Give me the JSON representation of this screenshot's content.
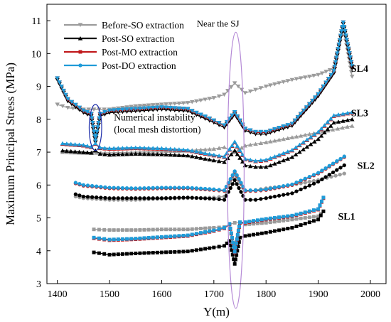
{
  "chart_data": {
    "type": "line",
    "xlabel": "Y(m)",
    "ylabel": "Maximum Principal Stress (MPa)",
    "xlim": [
      1380,
      2030
    ],
    "ylim": [
      3,
      11.5
    ],
    "xticks": [
      1400,
      1500,
      1600,
      1700,
      1800,
      1900,
      2000
    ],
    "yticks": [
      3,
      4,
      5,
      6,
      7,
      8,
      9,
      10,
      11
    ],
    "grid": false,
    "legend_placement": "top-left",
    "legend": [
      {
        "name": "Before-SO extraction",
        "color": "#9b9b9b",
        "marker": "triangle-down"
      },
      {
        "name": "Post-SO extraction",
        "color": "#000000",
        "marker": "triangle-up"
      },
      {
        "name": "Post-MO extraction",
        "color": "#c0191c",
        "marker": "square"
      },
      {
        "name": "Post-DO extraction",
        "color": "#1f9bd8",
        "marker": "circle"
      }
    ],
    "annotations": [
      {
        "id": "near-sj",
        "text": "Near the SJ",
        "ellipse": {
          "cx": 1742,
          "cy": 6.45,
          "rx": 16,
          "ry": 4.2
        },
        "color": "#b58ad6"
      },
      {
        "id": "numerical-instability",
        "lines": [
          "Numerical instability",
          "(local mesh distortion)"
        ],
        "ellipse": {
          "cx": 1473,
          "cy": 7.75,
          "rx": 12,
          "ry": 0.7
        },
        "color": "#1a2aa8"
      }
    ],
    "groups": [
      {
        "label": "SL4",
        "marker": "triangle-down",
        "label_at": [
          1963,
          9.55
        ],
        "series": [
          {
            "name": "Before-SO extraction",
            "color": "#9b9b9b",
            "x": [
              1400,
              1420,
              1450,
              1480,
              1500,
              1550,
              1600,
              1650,
              1700,
              1720,
              1740,
              1760,
              1780,
              1800,
              1850,
              1900,
              1930,
              1948,
              1965
            ],
            "y": [
              8.45,
              8.35,
              8.3,
              8.3,
              8.3,
              8.4,
              8.45,
              8.5,
              8.65,
              8.75,
              9.1,
              8.8,
              8.9,
              9.0,
              9.2,
              9.35,
              9.55,
              10.8,
              9.3
            ]
          },
          {
            "name": "Post-SO extraction",
            "color": "#000000",
            "x": [
              1400,
              1420,
              1450,
              1465,
              1473,
              1482,
              1500,
              1550,
              1600,
              1650,
              1700,
              1720,
              1740,
              1760,
              1780,
              1800,
              1850,
              1900,
              1930,
              1948,
              1965
            ],
            "y": [
              9.2,
              8.55,
              8.2,
              8.1,
              7.3,
              8.1,
              8.2,
              8.25,
              8.3,
              8.25,
              7.9,
              7.75,
              8.15,
              7.65,
              7.55,
              7.55,
              7.8,
              8.7,
              9.4,
              10.9,
              9.55
            ]
          },
          {
            "name": "Post-MO extraction",
            "color": "#c0191c",
            "x": [
              1400,
              1420,
              1450,
              1465,
              1473,
              1482,
              1500,
              1550,
              1600,
              1650,
              1700,
              1720,
              1740,
              1760,
              1780,
              1800,
              1850,
              1900,
              1930,
              1948,
              1965
            ],
            "y": [
              9.25,
              8.6,
              8.25,
              8.15,
              7.35,
              8.15,
              8.25,
              8.3,
              8.35,
              8.3,
              7.95,
              7.8,
              8.2,
              7.7,
              7.6,
              7.6,
              7.85,
              8.75,
              9.45,
              10.95,
              9.6
            ]
          },
          {
            "name": "Post-DO extraction",
            "color": "#1f9bd8",
            "x": [
              1400,
              1420,
              1450,
              1465,
              1473,
              1482,
              1500,
              1550,
              1600,
              1650,
              1700,
              1720,
              1740,
              1760,
              1780,
              1800,
              1850,
              1900,
              1930,
              1948,
              1965
            ],
            "y": [
              9.25,
              8.62,
              8.27,
              8.17,
              7.35,
              8.17,
              8.27,
              8.32,
              8.37,
              8.32,
              7.97,
              7.82,
              8.22,
              7.72,
              7.62,
              7.62,
              7.87,
              8.77,
              9.47,
              10.95,
              9.62
            ]
          }
        ]
      },
      {
        "label": "SL3",
        "marker": "triangle-up",
        "label_at": [
          1963,
          8.2
        ],
        "series": [
          {
            "name": "Before-SO extraction",
            "color": "#9b9b9b",
            "x": [
              1410,
              1450,
              1500,
              1550,
              1600,
              1650,
              1700,
              1720,
              1740,
              1760,
              1780,
              1800,
              1850,
              1900,
              1965
            ],
            "y": [
              7.0,
              6.98,
              6.98,
              7.0,
              7.02,
              7.05,
              7.1,
              7.15,
              7.0,
              7.2,
              7.25,
              7.3,
              7.45,
              7.6,
              7.8
            ]
          },
          {
            "name": "Post-SO extraction",
            "color": "#000000",
            "x": [
              1410,
              1450,
              1465,
              1473,
              1482,
              1500,
              1550,
              1600,
              1650,
              1700,
              1720,
              1740,
              1760,
              1780,
              1800,
              1850,
              1900,
              1930,
              1965
            ],
            "y": [
              7.05,
              7.0,
              6.98,
              7.05,
              6.95,
              6.92,
              6.95,
              6.93,
              6.9,
              6.75,
              6.7,
              7.05,
              6.6,
              6.55,
              6.55,
              6.85,
              7.4,
              7.9,
              8.0
            ]
          },
          {
            "name": "Post-MO extraction",
            "color": "#c0191c",
            "x": [
              1410,
              1450,
              1465,
              1473,
              1482,
              1500,
              1550,
              1600,
              1650,
              1700,
              1720,
              1740,
              1760,
              1780,
              1800,
              1850,
              1900,
              1930,
              1965
            ],
            "y": [
              7.25,
              7.2,
              7.15,
              7.25,
              7.12,
              7.1,
              7.12,
              7.1,
              7.05,
              6.9,
              6.85,
              7.3,
              6.78,
              6.72,
              6.75,
              7.05,
              7.6,
              8.1,
              8.2
            ]
          },
          {
            "name": "Post-DO extraction",
            "color": "#1f9bd8",
            "x": [
              1410,
              1450,
              1465,
              1473,
              1482,
              1500,
              1550,
              1600,
              1650,
              1700,
              1720,
              1740,
              1760,
              1780,
              1800,
              1850,
              1900,
              1930,
              1965
            ],
            "y": [
              7.27,
              7.22,
              7.17,
              7.27,
              7.14,
              7.12,
              7.14,
              7.12,
              7.07,
              6.92,
              6.87,
              7.32,
              6.8,
              6.74,
              6.77,
              7.07,
              7.62,
              8.12,
              8.22
            ]
          }
        ]
      },
      {
        "label": "SL2",
        "marker": "circle",
        "label_at": [
          1975,
          6.6
        ],
        "series": [
          {
            "name": "Before-SO extraction",
            "color": "#9b9b9b",
            "x": [
              1435,
              1450,
              1500,
              1550,
              1600,
              1650,
              1700,
              1720,
              1740,
              1760,
              1780,
              1800,
              1850,
              1900,
              1950
            ],
            "y": [
              5.65,
              5.6,
              5.55,
              5.55,
              5.58,
              5.6,
              5.62,
              5.65,
              6.35,
              5.8,
              5.85,
              5.9,
              6.0,
              6.15,
              6.35
            ]
          },
          {
            "name": "Post-SO extraction",
            "color": "#000000",
            "x": [
              1435,
              1450,
              1500,
              1550,
              1600,
              1650,
              1700,
              1720,
              1740,
              1760,
              1780,
              1800,
              1850,
              1900,
              1950
            ],
            "y": [
              5.72,
              5.65,
              5.6,
              5.6,
              5.6,
              5.62,
              5.58,
              5.55,
              6.15,
              5.55,
              5.55,
              5.6,
              5.75,
              6.1,
              6.6
            ]
          },
          {
            "name": "Post-MO extraction",
            "color": "#c0191c",
            "x": [
              1435,
              1450,
              1500,
              1550,
              1600,
              1650,
              1700,
              1720,
              1740,
              1760,
              1780,
              1800,
              1850,
              1900,
              1950
            ],
            "y": [
              6.05,
              5.98,
              5.9,
              5.88,
              5.9,
              5.9,
              5.85,
              5.82,
              6.4,
              5.82,
              5.82,
              5.85,
              6.0,
              6.35,
              6.85
            ]
          },
          {
            "name": "Post-DO extraction",
            "color": "#1f9bd8",
            "x": [
              1435,
              1450,
              1500,
              1550,
              1600,
              1650,
              1700,
              1720,
              1740,
              1760,
              1780,
              1800,
              1850,
              1900,
              1950
            ],
            "y": [
              6.07,
              6.0,
              5.92,
              5.9,
              5.92,
              5.92,
              5.87,
              5.84,
              6.42,
              5.84,
              5.84,
              5.87,
              6.02,
              6.37,
              6.87
            ]
          }
        ]
      },
      {
        "label": "SL1",
        "marker": "square",
        "label_at": [
          1938,
          5.05
        ],
        "series": [
          {
            "name": "Before-SO extraction",
            "color": "#9b9b9b",
            "x": [
              1470,
              1500,
              1550,
              1600,
              1650,
              1700,
              1720,
              1730,
              1740,
              1750,
              1760,
              1800,
              1850,
              1900,
              1910
            ],
            "y": [
              4.65,
              4.63,
              4.63,
              4.65,
              4.65,
              4.7,
              4.72,
              4.8,
              4.85,
              4.85,
              4.8,
              4.85,
              4.95,
              5.05,
              5.2
            ]
          },
          {
            "name": "Post-SO extraction",
            "color": "#000000",
            "x": [
              1470,
              1500,
              1550,
              1600,
              1650,
              1700,
              1720,
              1730,
              1740,
              1750,
              1760,
              1800,
              1850,
              1900,
              1910
            ],
            "y": [
              3.95,
              3.88,
              3.92,
              3.95,
              3.98,
              4.1,
              4.15,
              4.3,
              3.6,
              4.4,
              4.45,
              4.55,
              4.7,
              4.95,
              5.2
            ]
          },
          {
            "name": "Post-MO extraction",
            "color": "#c0191c",
            "x": [
              1470,
              1500,
              1550,
              1600,
              1650,
              1700,
              1720,
              1730,
              1740,
              1750,
              1760,
              1800,
              1850,
              1900,
              1910
            ],
            "y": [
              4.38,
              4.32,
              4.35,
              4.4,
              4.45,
              4.6,
              4.68,
              4.8,
              3.95,
              4.85,
              4.85,
              4.95,
              5.05,
              5.25,
              5.6
            ]
          },
          {
            "name": "Post-DO extraction",
            "color": "#1f9bd8",
            "x": [
              1470,
              1500,
              1550,
              1600,
              1650,
              1700,
              1720,
              1730,
              1740,
              1750,
              1760,
              1800,
              1850,
              1900,
              1910
            ],
            "y": [
              4.4,
              4.34,
              4.37,
              4.42,
              4.47,
              4.62,
              4.7,
              4.82,
              3.97,
              4.87,
              4.87,
              4.97,
              5.07,
              5.27,
              5.62
            ]
          }
        ]
      }
    ]
  }
}
